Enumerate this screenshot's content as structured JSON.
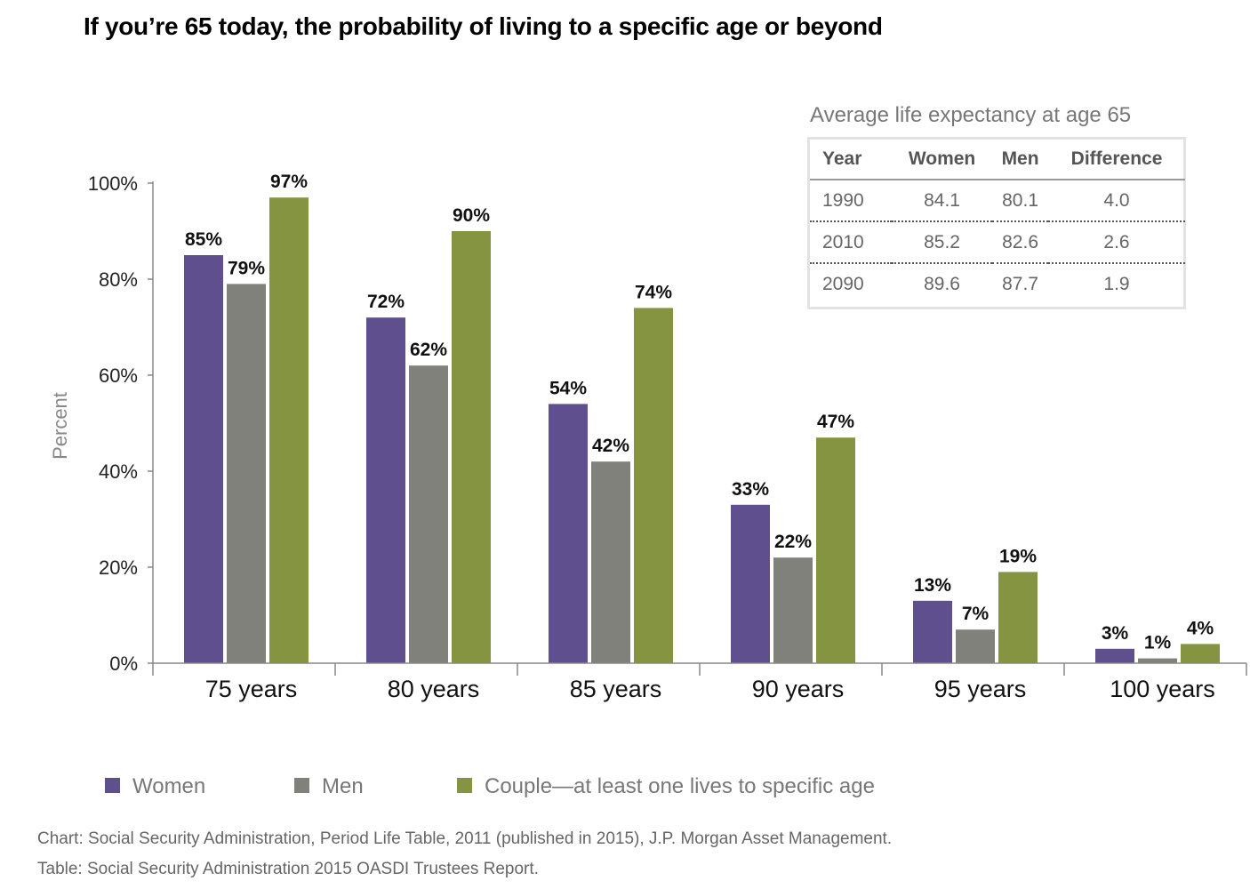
{
  "title": "If you’re 65 today, the probability of living to a specific age or beyond",
  "chart_data": {
    "type": "bar",
    "ylabel": "Percent",
    "ylim": [
      0,
      100
    ],
    "yticks": [
      "0%",
      "20%",
      "40%",
      "60%",
      "80%",
      "100%"
    ],
    "categories": [
      "75 years",
      "80 years",
      "85 years",
      "90 years",
      "95 years",
      "100 years"
    ],
    "series": [
      {
        "name": "Women",
        "color": "#5f4f8f",
        "values": [
          85,
          72,
          54,
          33,
          13,
          3
        ],
        "labels": [
          "85%",
          "72%",
          "54%",
          "33%",
          "13%",
          "3%"
        ]
      },
      {
        "name": "Men",
        "color": "#80817b",
        "values": [
          79,
          62,
          42,
          22,
          7,
          1
        ],
        "labels": [
          "79%",
          "62%",
          "42%",
          "22%",
          "7%",
          "1%"
        ]
      },
      {
        "name": "Couple—at least one lives to specific age",
        "color": "#859440",
        "values": [
          97,
          90,
          74,
          47,
          19,
          4
        ],
        "labels": [
          "97%",
          "90%",
          "74%",
          "47%",
          "19%",
          "4%"
        ]
      }
    ],
    "grid": false,
    "legend_position": "bottom"
  },
  "inset_table": {
    "title": "Average life expectancy at age 65",
    "headers": [
      "Year",
      "Women",
      "Men",
      "Difference"
    ],
    "rows": [
      [
        "1990",
        "84.1",
        "80.1",
        "4.0"
      ],
      [
        "2010",
        "85.2",
        "82.6",
        "2.6"
      ],
      [
        "2090",
        "89.6",
        "87.7",
        "1.9"
      ]
    ]
  },
  "sources": {
    "chart": "Chart: Social Security Administration, Period Life Table, 2011 (published in 2015), J.P. Morgan Asset Management.",
    "table": "Table: Social Security Administration 2015 OASDI Trustees Report."
  }
}
